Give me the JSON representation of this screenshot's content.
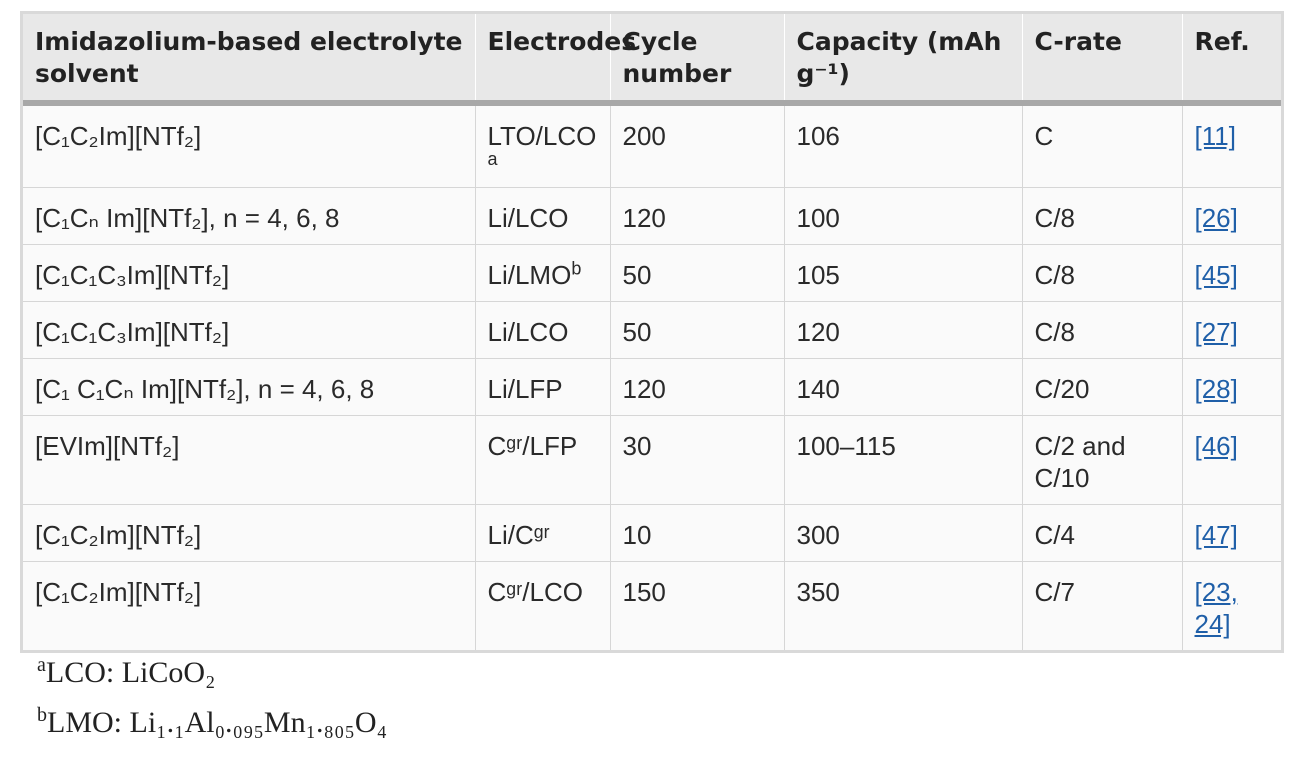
{
  "table": {
    "headers": [
      "Imidazolium-based electrolyte solvent",
      "Electrodes",
      "Cycle number",
      "Capacity (mAh g⁻¹)",
      "C-rate",
      "Ref."
    ],
    "rows": [
      {
        "solvent": "[C₁C₂Im][NTf₂]",
        "electrodes": "LTO/LCO",
        "electrodes_note": "a",
        "cycles": "200",
        "capacity": "106",
        "crate": "C",
        "ref": "[11]"
      },
      {
        "solvent": "[C₁Cₙ Im][NTf₂], n = 4, 6, 8",
        "electrodes": "Li/LCO",
        "electrodes_note": "",
        "cycles": "120",
        "capacity": "100",
        "crate": "C/8",
        "ref": "[26]"
      },
      {
        "solvent": "[C₁C₁C₃Im][NTf₂]",
        "electrodes": "Li/LMO",
        "electrodes_note": "b",
        "cycles": "50",
        "capacity": "105",
        "crate": "C/8",
        "ref": "[45]"
      },
      {
        "solvent": "[C₁C₁C₃Im][NTf₂]",
        "electrodes": "Li/LCO",
        "electrodes_note": "",
        "cycles": "50",
        "capacity": "120",
        "crate": "C/8",
        "ref": "[27]"
      },
      {
        "solvent": "[C₁ C₁Cₙ Im][NTf₂], n = 4, 6, 8",
        "electrodes": "Li/LFP",
        "electrodes_note": "",
        "cycles": "120",
        "capacity": "140",
        "crate": "C/20",
        "ref": "[28]"
      },
      {
        "solvent": "[EVIm][NTf₂]",
        "electrodes": "Cᵍʳ/LFP",
        "electrodes_note": "",
        "cycles": "30",
        "capacity": "100–115",
        "crate": "C/2 and C/10",
        "ref": "[46]"
      },
      {
        "solvent": "[C₁C₂Im][NTf₂]",
        "electrodes": "Li/Cᵍʳ",
        "electrodes_note": "",
        "cycles": "10",
        "capacity": "300",
        "crate": "C/4",
        "ref": "[47]"
      },
      {
        "solvent": "[C₁C₂Im][NTf₂]",
        "electrodes": "Cᵍʳ/LCO",
        "electrodes_note": "",
        "cycles": "150",
        "capacity": "350",
        "crate": "C/7",
        "ref": "[23, 24]"
      }
    ]
  },
  "footnotes": [
    {
      "mark": "a",
      "text": "LCO: LiCoO₂"
    },
    {
      "mark": "b",
      "text": "LMO: Li₁.₁Al₀.₀₉₅Mn₁.₈₀₅O₄"
    }
  ]
}
